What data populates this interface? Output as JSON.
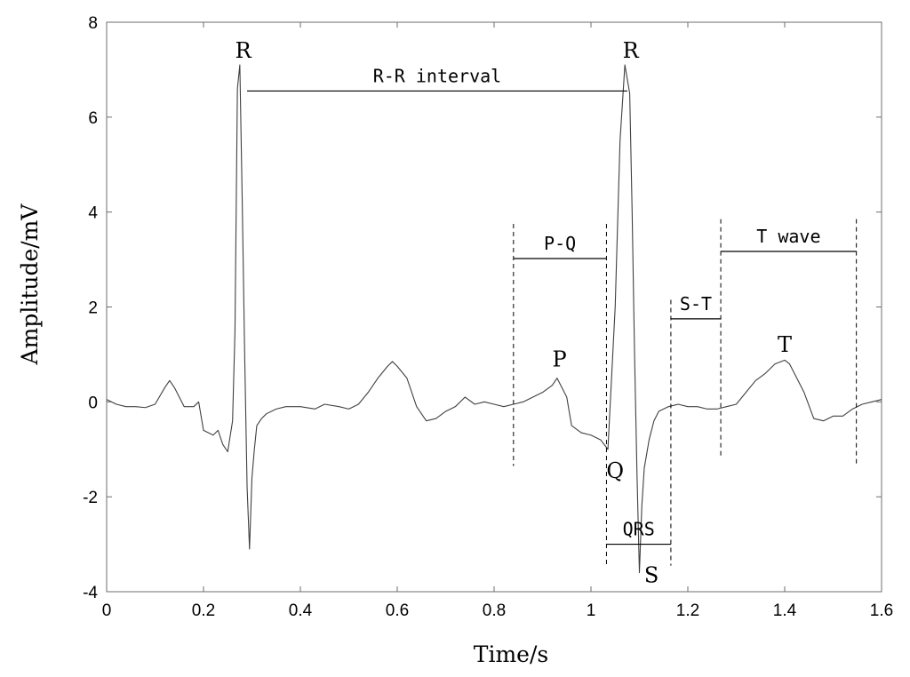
{
  "chart_data": {
    "type": "line",
    "title": "",
    "xlabel": "Time/s",
    "ylabel": "Amplitude/mV",
    "xlim": [
      0,
      1.6
    ],
    "ylim": [
      -4,
      8
    ],
    "grid": false,
    "x_ticks": [
      {
        "value": 0,
        "label": "0"
      },
      {
        "value": 0.2,
        "label": "0.2"
      },
      {
        "value": 0.4,
        "label": "0.4"
      },
      {
        "value": 0.6,
        "label": "0.6"
      },
      {
        "value": 0.8,
        "label": "0.8"
      },
      {
        "value": 1.0,
        "label": "1"
      },
      {
        "value": 1.2,
        "label": "1.2"
      },
      {
        "value": 1.4,
        "label": "1.4"
      },
      {
        "value": 1.6,
        "label": "1.6"
      }
    ],
    "y_ticks": [
      {
        "value": -4,
        "label": "-4"
      },
      {
        "value": -2,
        "label": "-2"
      },
      {
        "value": 0,
        "label": "0"
      },
      {
        "value": 2,
        "label": "2"
      },
      {
        "value": 4,
        "label": "4"
      },
      {
        "value": 6,
        "label": "6"
      },
      {
        "value": 8,
        "label": "8"
      }
    ],
    "series": [
      {
        "color": "#404040",
        "x": [
          0,
          0.02,
          0.04,
          0.06,
          0.08,
          0.1,
          0.12,
          0.13,
          0.14,
          0.16,
          0.18,
          0.19,
          0.2,
          0.22,
          0.23,
          0.24,
          0.25,
          0.26,
          0.265,
          0.27,
          0.275,
          0.28,
          0.285,
          0.29,
          0.295,
          0.3,
          0.305,
          0.31,
          0.32,
          0.33,
          0.35,
          0.37,
          0.4,
          0.43,
          0.45,
          0.48,
          0.5,
          0.52,
          0.54,
          0.56,
          0.58,
          0.59,
          0.6,
          0.62,
          0.63,
          0.64,
          0.66,
          0.68,
          0.7,
          0.72,
          0.74,
          0.76,
          0.78,
          0.8,
          0.82,
          0.84,
          0.86,
          0.88,
          0.9,
          0.92,
          0.93,
          0.94,
          0.95,
          0.96,
          0.98,
          1.0,
          1.02,
          1.035,
          1.05,
          1.06,
          1.07,
          1.08,
          1.085,
          1.09,
          1.095,
          1.1,
          1.105,
          1.11,
          1.12,
          1.13,
          1.14,
          1.16,
          1.18,
          1.2,
          1.22,
          1.24,
          1.26,
          1.28,
          1.3,
          1.32,
          1.34,
          1.36,
          1.38,
          1.4,
          1.41,
          1.42,
          1.44,
          1.46,
          1.48,
          1.5,
          1.52,
          1.54,
          1.56,
          1.58,
          1.6
        ],
        "y": [
          0.05,
          -0.05,
          -0.1,
          -0.1,
          -0.12,
          -0.05,
          0.3,
          0.45,
          0.3,
          -0.1,
          -0.1,
          0.0,
          -0.6,
          -0.7,
          -0.6,
          -0.9,
          -1.05,
          -0.4,
          1.5,
          6.6,
          7.1,
          4.2,
          1.0,
          -1.8,
          -3.1,
          -1.6,
          -1.0,
          -0.5,
          -0.35,
          -0.25,
          -0.15,
          -0.1,
          -0.1,
          -0.15,
          -0.05,
          -0.1,
          -0.15,
          -0.05,
          0.2,
          0.5,
          0.75,
          0.85,
          0.75,
          0.5,
          0.2,
          -0.1,
          -0.4,
          -0.35,
          -0.2,
          -0.1,
          0.1,
          -0.05,
          0.0,
          -0.05,
          -0.1,
          -0.05,
          0.0,
          0.1,
          0.2,
          0.35,
          0.5,
          0.3,
          0.1,
          -0.5,
          -0.65,
          -0.7,
          -0.8,
          -1.0,
          2.0,
          5.5,
          7.1,
          6.5,
          4.0,
          1.0,
          -1.5,
          -3.6,
          -2.2,
          -1.4,
          -0.8,
          -0.4,
          -0.2,
          -0.1,
          -0.05,
          -0.1,
          -0.1,
          -0.15,
          -0.15,
          -0.1,
          -0.05,
          0.2,
          0.45,
          0.6,
          0.8,
          0.88,
          0.8,
          0.6,
          0.2,
          -0.35,
          -0.4,
          -0.3,
          -0.3,
          -0.15,
          -0.05,
          0.0,
          0.05
        ]
      }
    ],
    "annotations": {
      "peaks": [
        {
          "label": "R",
          "x": 0.282,
          "y": 7.25
        },
        {
          "label": "R",
          "x": 1.082,
          "y": 7.25
        },
        {
          "label": "P",
          "x": 0.935,
          "y": 0.75
        },
        {
          "label": "Q",
          "x": 1.05,
          "y": -1.6
        },
        {
          "label": "S",
          "x": 1.125,
          "y": -3.8
        },
        {
          "label": "T",
          "x": 1.4,
          "y": 1.05
        }
      ],
      "intervals": [
        {
          "label": "R-R interval",
          "x_start": 0.29,
          "x_end": 1.075,
          "y": 6.55
        },
        {
          "label": "P-Q",
          "x_start": 0.84,
          "x_end": 1.032,
          "y": 3.02
        },
        {
          "label": "S-T",
          "x_start": 1.165,
          "x_end": 1.268,
          "y": 1.75
        },
        {
          "label": "T wave",
          "x_start": 1.268,
          "x_end": 1.548,
          "y": 3.17
        },
        {
          "label": "QRS",
          "x_start": 1.032,
          "x_end": 1.165,
          "y": -3.0
        }
      ],
      "dashed_lines": [
        {
          "x": 0.84,
          "y_from": -1.35,
          "y_to": 3.75
        },
        {
          "x": 1.032,
          "y_from": -3.45,
          "y_to": 3.75
        },
        {
          "x": 1.165,
          "y_from": -3.45,
          "y_to": 2.15
        },
        {
          "x": 1.268,
          "y_from": -1.2,
          "y_to": 3.85
        },
        {
          "x": 1.548,
          "y_from": -1.35,
          "y_to": 3.85
        }
      ]
    }
  }
}
